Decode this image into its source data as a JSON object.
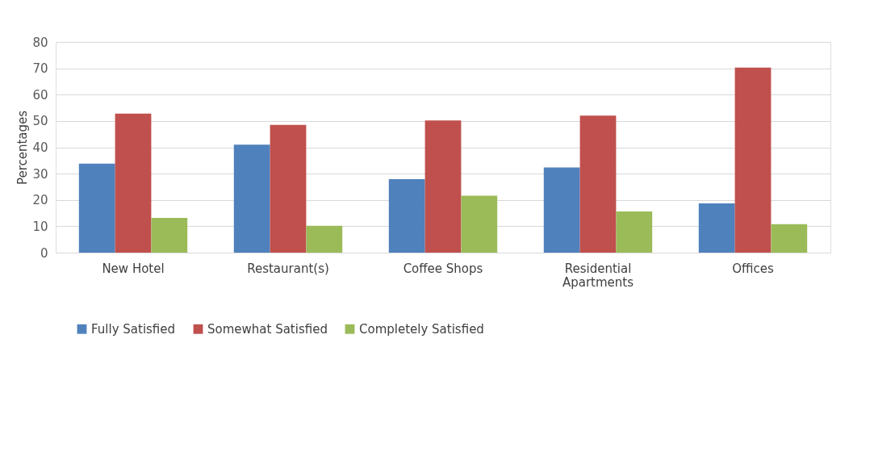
{
  "chart_data": {
    "type": "bar",
    "ylabel": "Percentages",
    "categories": [
      "New Hotel",
      "Restaurant(s)",
      "Coffee Shops",
      "Residential Apartments",
      "Offices"
    ],
    "series": [
      {
        "name": "Fully Satisfied",
        "color": "#4f81bd",
        "values": [
          33.8,
          41.0,
          27.9,
          32.3,
          18.7
        ]
      },
      {
        "name": "Somewhat Satisfied",
        "color": "#c0504d",
        "values": [
          52.8,
          48.5,
          50.2,
          52.0,
          70.3
        ]
      },
      {
        "name": "Completely Satisfied",
        "color": "#9bbb59",
        "values": [
          13.2,
          10.2,
          21.6,
          15.6,
          10.8
        ]
      }
    ],
    "ylim": [
      0,
      80
    ],
    "yticks": [
      0,
      10,
      20,
      30,
      40,
      50,
      60,
      70,
      80
    ],
    "grid": "y",
    "legend": "bottom"
  }
}
